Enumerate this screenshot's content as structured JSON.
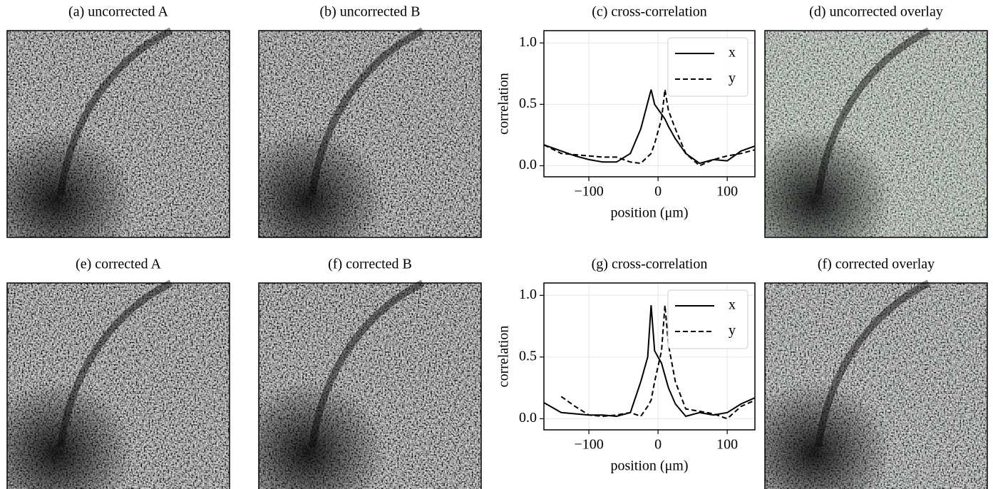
{
  "image_panels": [
    {
      "title": "(a) uncorrected A"
    },
    {
      "title": "(b) uncorrected B"
    },
    {
      "title": "(d) uncorrected overlay"
    },
    {
      "title": "(e) corrected A"
    },
    {
      "title": "(f) corrected B"
    },
    {
      "title": "(f) corrected overlay"
    }
  ],
  "chart_data": [
    {
      "type": "line",
      "title": "(c) cross-correlation",
      "x_label": "position (μm)",
      "y_label": "correlation",
      "x": [
        -165,
        -140,
        -120,
        -100,
        -80,
        -60,
        -40,
        -25,
        -10,
        -5,
        5,
        10,
        15,
        25,
        40,
        60,
        80,
        100,
        120,
        140
      ],
      "series": [
        {
          "name": "x",
          "color": "#000000",
          "dash": "solid",
          "values": [
            0.17,
            0.12,
            0.08,
            0.05,
            0.03,
            0.03,
            0.1,
            0.3,
            0.62,
            0.5,
            0.42,
            0.38,
            0.32,
            0.22,
            0.1,
            0.02,
            0.05,
            0.04,
            0.12,
            0.16
          ]
        },
        {
          "name": "y",
          "color": "#000000",
          "dash": "dashed",
          "values": [
            0.17,
            0.1,
            0.09,
            0.08,
            0.07,
            0.07,
            0.03,
            0.02,
            0.1,
            0.18,
            0.38,
            0.62,
            0.45,
            0.3,
            0.1,
            0.0,
            0.05,
            0.08,
            0.1,
            0.13
          ]
        }
      ],
      "xlim": [
        -165,
        140
      ],
      "ylim": [
        -0.09,
        1.1
      ],
      "xticks": [
        {
          "value": -100,
          "label": "−100"
        },
        0,
        100
      ],
      "yticks": [
        {
          "value": 0,
          "label": "0.0"
        },
        0.5,
        {
          "value": 1,
          "label": "1.0"
        }
      ],
      "grid": true,
      "legend": "upper right"
    },
    {
      "type": "line",
      "title": "(g) cross-correlation",
      "x_label": "position (μm)",
      "y_label": "correlation",
      "x": [
        -165,
        -140,
        -120,
        -100,
        -80,
        -60,
        -40,
        -25,
        -15,
        -10,
        -5,
        5,
        10,
        15,
        25,
        40,
        60,
        80,
        100,
        120,
        140
      ],
      "series": [
        {
          "name": "x",
          "color": "#000000",
          "dash": "solid",
          "values": [
            0.13,
            0.05,
            0.04,
            0.03,
            0.03,
            0.02,
            0.05,
            0.3,
            0.5,
            0.92,
            0.55,
            0.45,
            0.35,
            0.25,
            0.12,
            0.02,
            0.05,
            0.03,
            0.05,
            0.12,
            0.17
          ]
        },
        {
          "name": "y",
          "color": "#000000",
          "dash": "dashed",
          "values": [
            null,
            0.18,
            0.1,
            0.03,
            0.02,
            0.03,
            0.05,
            0.02,
            0.1,
            0.15,
            0.3,
            0.55,
            0.92,
            0.6,
            0.3,
            0.08,
            0.06,
            0.04,
            0.0,
            0.1,
            0.15
          ]
        }
      ],
      "xlim": [
        -165,
        140
      ],
      "ylim": [
        -0.09,
        1.1
      ],
      "xticks": [
        {
          "value": -100,
          "label": "−100"
        },
        0,
        100
      ],
      "yticks": [
        {
          "value": 0,
          "label": "0.0"
        },
        0.5,
        {
          "value": 1,
          "label": "1.0"
        }
      ],
      "grid": true,
      "legend": "upper right"
    }
  ]
}
